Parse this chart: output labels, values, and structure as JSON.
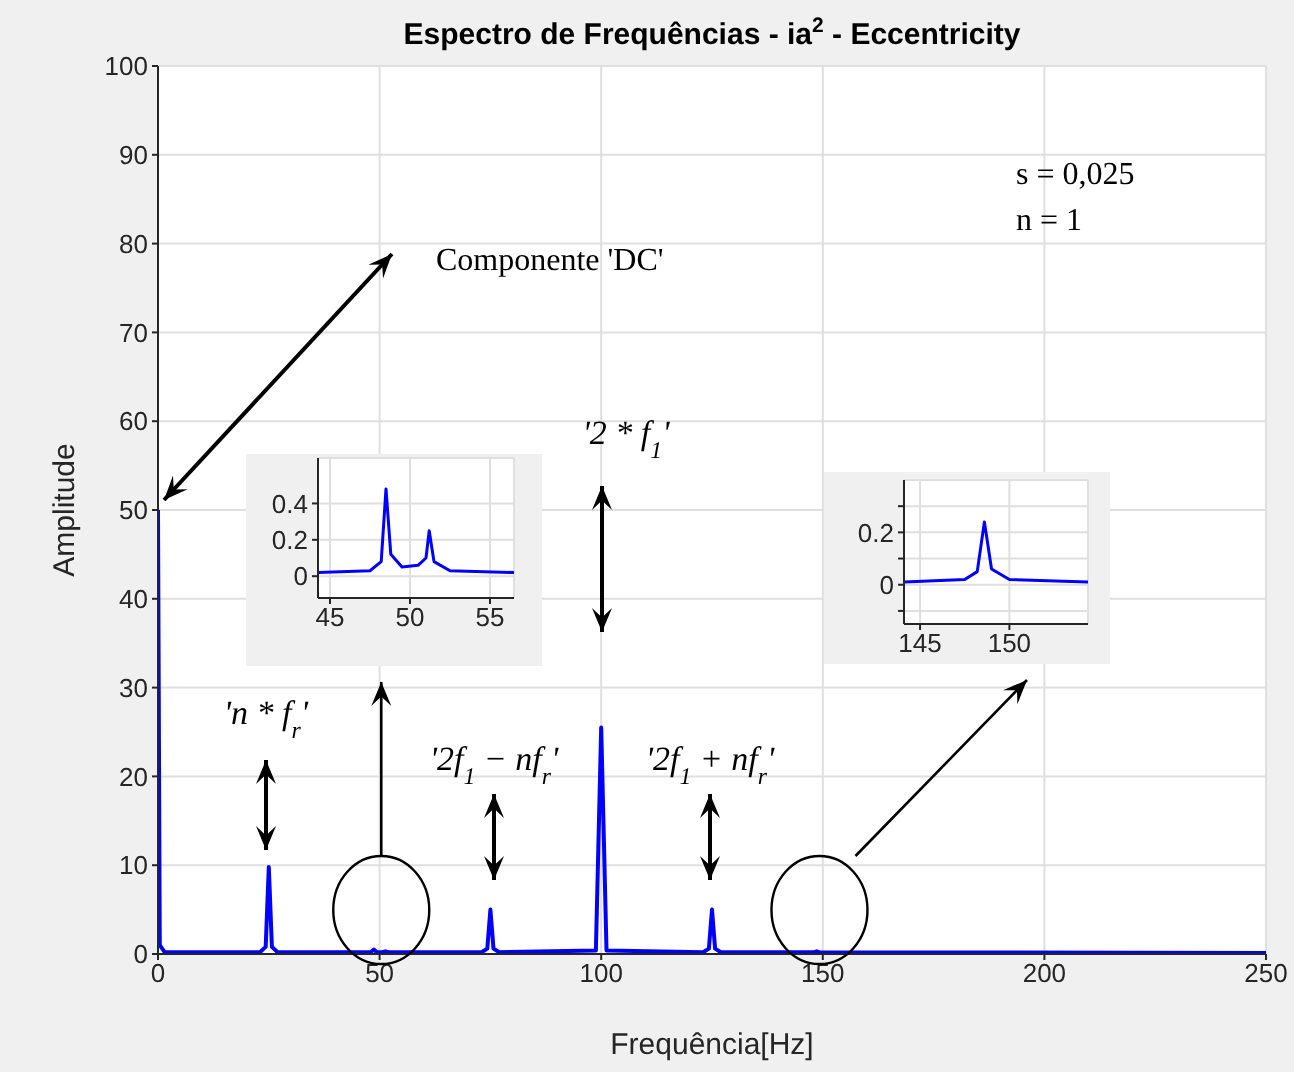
{
  "chart_data": [
    {
      "type": "line",
      "title": "Espectro de Frequências - ia$^{2}$ - Eccentricity",
      "xlabel": "Frequência[Hz]",
      "ylabel": "Amplitude",
      "xlim": [
        0,
        250
      ],
      "xticks": [
        0,
        50,
        100,
        150,
        200,
        250
      ],
      "ylim": [
        0,
        100
      ],
      "yticks": [
        0,
        10,
        20,
        30,
        40,
        50,
        60,
        70,
        80,
        90,
        100
      ],
      "grid": true,
      "series": [
        {
          "color": "#0000ff",
          "x": [
            0,
            0.4,
            1.5,
            23,
            24.3,
            25,
            25.7,
            27,
            48,
            48.7,
            49.4,
            50.6,
            51.3,
            52,
            73,
            74.3,
            75,
            75.7,
            77,
            98.8,
            100,
            101.2,
            123,
            124.3,
            125,
            125.7,
            127,
            148,
            148.6,
            149.2,
            250
          ],
          "values": [
            50,
            1,
            0.2,
            0.2,
            0.8,
            9.8,
            0.8,
            0.2,
            0.2,
            0.5,
            0.2,
            0.2,
            0.3,
            0.2,
            0.2,
            0.6,
            5,
            0.6,
            0.2,
            0.4,
            25.5,
            0.4,
            0.2,
            0.6,
            5,
            0.6,
            0.2,
            0.2,
            0.3,
            0.2,
            0.1
          ]
        }
      ],
      "annotations": [
        "Componente 'DC'",
        "'2 * f$_{1}$'",
        "'n * f$_{r}$'",
        "'2f$_{1}$ − nf$_{r}$'",
        "'2f$_{1}$ + nf$_{r}$'",
        "s = 0,025",
        "n = 1"
      ]
    },
    {
      "type": "line",
      "xlim": [
        44.25,
        56.5
      ],
      "xticks": [
        45,
        50,
        55
      ],
      "ylim": [
        -0.12,
        0.65
      ],
      "yticks": [
        0,
        0.2,
        0.4
      ],
      "grid": true,
      "series": [
        {
          "color": "#0000ff",
          "x": [
            44.25,
            47.5,
            48.2,
            48.5,
            48.8,
            49.5,
            50.5,
            51,
            51.2,
            51.5,
            52.5,
            56.5
          ],
          "values": [
            0.02,
            0.03,
            0.08,
            0.48,
            0.12,
            0.05,
            0.06,
            0.1,
            0.25,
            0.08,
            0.03,
            0.02
          ]
        }
      ]
    },
    {
      "type": "line",
      "xlim": [
        144.1,
        154.4
      ],
      "xticks": [
        145,
        150
      ],
      "ylim": [
        -0.15,
        0.4
      ],
      "yticks": [
        {
          "value": -0.1,
          "label": null
        },
        0,
        {
          "value": 0.1,
          "label": null
        },
        0.2,
        {
          "value": 0.3,
          "label": null
        }
      ],
      "grid": true,
      "series": [
        {
          "color": "#0000ff",
          "x": [
            144.1,
            147.5,
            148.2,
            148.6,
            149,
            150,
            154.4
          ],
          "values": [
            0.01,
            0.02,
            0.05,
            0.24,
            0.06,
            0.02,
            0.01
          ]
        }
      ]
    }
  ]
}
